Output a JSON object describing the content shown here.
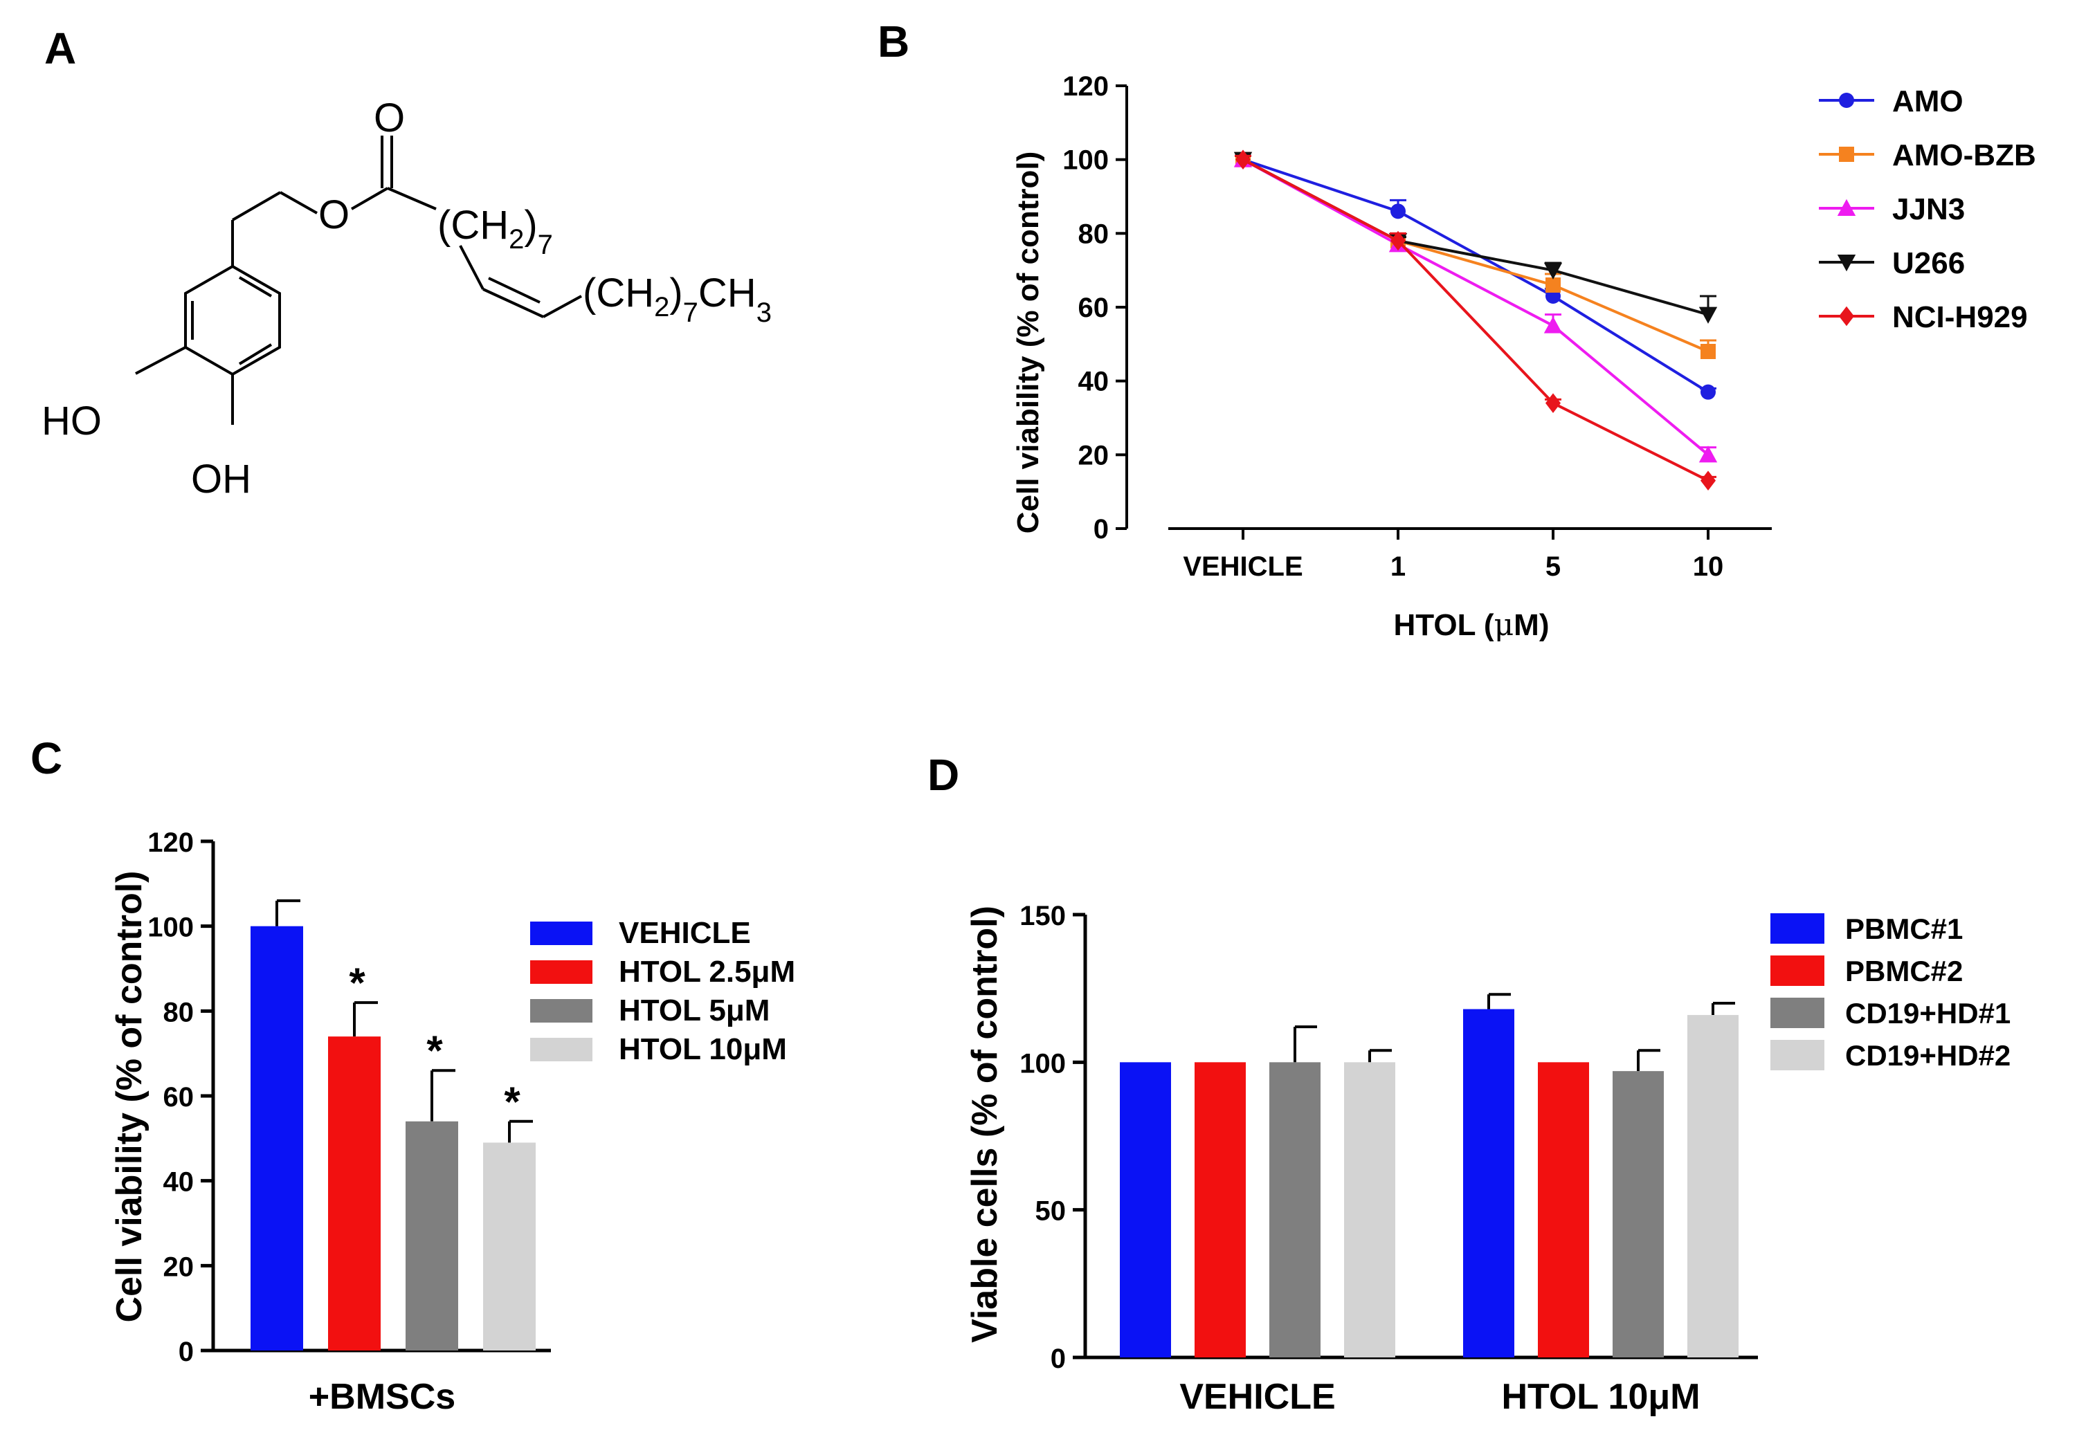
{
  "panels": {
    "a": "A",
    "b": "B",
    "c": "C",
    "d": "D"
  },
  "structure": {
    "o_top": "O",
    "o_ester": "O",
    "ch2": "(CH",
    "sub2": "2",
    "close": ")",
    "sub7": "7",
    "ch2_b": "(CH",
    "sub2_b": "2",
    "close_b": ")",
    "sub7_b": "7",
    "ch": "CH",
    "sub3": "3",
    "ho": "HO",
    "oh": "OH"
  },
  "chart_data": [
    {
      "id": "B",
      "type": "line",
      "categories": [
        "VEHICLE",
        "1",
        "5",
        "10"
      ],
      "ylabel": "Cell viability (% of control)",
      "xlabel_prefix": "HTOL (",
      "xlabel_mu": "μ",
      "xlabel_suffix": "M)",
      "ylim": [
        0,
        120
      ],
      "yticks": [
        "0",
        "20",
        "40",
        "60",
        "80",
        "100",
        "120"
      ],
      "series": [
        {
          "name": "AMO",
          "color": "#1f1fe0",
          "marker": "circle",
          "values": [
            100,
            86,
            63,
            37
          ],
          "errors": [
            1,
            3,
            2,
            1
          ]
        },
        {
          "name": "AMO-BZB",
          "color": "#f5821f",
          "marker": "square",
          "values": [
            100,
            78,
            66,
            48
          ],
          "errors": [
            1,
            2,
            3,
            3
          ]
        },
        {
          "name": "JJN3",
          "color": "#ee1cf0",
          "marker": "triangle-up",
          "values": [
            100,
            77,
            55,
            20
          ],
          "errors": [
            1,
            2,
            3,
            2
          ]
        },
        {
          "name": "U266",
          "color": "#111111",
          "marker": "triangle-down",
          "values": [
            100,
            78,
            70,
            58
          ],
          "errors": [
            1,
            1,
            2,
            5
          ]
        },
        {
          "name": "NCI-H929",
          "color": "#e8141c",
          "marker": "diamond",
          "values": [
            100,
            78,
            34,
            13
          ],
          "errors": [
            1,
            2,
            1,
            1
          ]
        }
      ]
    },
    {
      "id": "C",
      "type": "bar",
      "categories": [
        "+BMSCs"
      ],
      "ylabel": "Cell viability (% of control)",
      "ylim": [
        0,
        120
      ],
      "yticks": [
        "0",
        "20",
        "40",
        "60",
        "80",
        "100",
        "120"
      ],
      "series": [
        {
          "name": "VEHICLE",
          "color": "#0a12f5",
          "values": [
            100
          ],
          "errors": [
            6
          ],
          "star": ""
        },
        {
          "name": "HTOL 2.5μM",
          "color": "#f21010",
          "values": [
            74
          ],
          "errors": [
            8
          ],
          "star": "*"
        },
        {
          "name": "HTOL 5μM",
          "color": "#7f7f7f",
          "values": [
            54
          ],
          "errors": [
            12
          ],
          "star": "*"
        },
        {
          "name": "HTOL 10μM",
          "color": "#d3d3d3",
          "values": [
            49
          ],
          "errors": [
            5
          ],
          "star": "*"
        }
      ]
    },
    {
      "id": "D",
      "type": "bar",
      "categories": [
        "VEHICLE",
        "HTOL 10μM"
      ],
      "ylabel": "Viable cells (% of control)",
      "ylim": [
        0,
        150
      ],
      "yticks": [
        "0",
        "50",
        "100",
        "150"
      ],
      "series": [
        {
          "name": "PBMC#1",
          "color": "#0a12f5",
          "values": [
            100,
            118
          ],
          "errors": [
            0,
            5
          ]
        },
        {
          "name": "PBMC#2",
          "color": "#f21010",
          "values": [
            100,
            100
          ],
          "errors": [
            0,
            0
          ]
        },
        {
          "name": "CD19+HD#1",
          "color": "#7f7f7f",
          "values": [
            100,
            97
          ],
          "errors": [
            12,
            7
          ]
        },
        {
          "name": "CD19+HD#2",
          "color": "#d3d3d3",
          "values": [
            100,
            116
          ],
          "errors": [
            4,
            4
          ]
        }
      ]
    }
  ]
}
